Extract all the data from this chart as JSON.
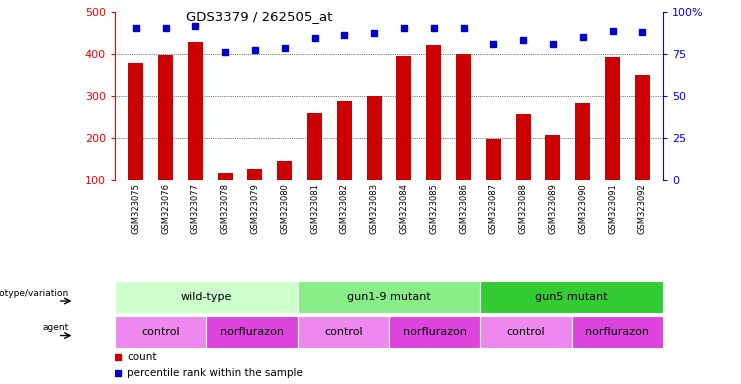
{
  "title": "GDS3379 / 262505_at",
  "samples": [
    "GSM323075",
    "GSM323076",
    "GSM323077",
    "GSM323078",
    "GSM323079",
    "GSM323080",
    "GSM323081",
    "GSM323082",
    "GSM323083",
    "GSM323084",
    "GSM323085",
    "GSM323086",
    "GSM323087",
    "GSM323088",
    "GSM323089",
    "GSM323090",
    "GSM323091",
    "GSM323092"
  ],
  "counts": [
    378,
    397,
    427,
    118,
    128,
    147,
    260,
    289,
    300,
    395,
    420,
    400,
    199,
    258,
    207,
    284,
    392,
    350
  ],
  "percentile_ranks": [
    460,
    460,
    465,
    403,
    410,
    413,
    438,
    445,
    448,
    460,
    462,
    462,
    424,
    433,
    424,
    440,
    455,
    452
  ],
  "bar_color": "#cc0000",
  "dot_color": "#0000cc",
  "ylim_left": [
    100,
    500
  ],
  "ylim_right": [
    0,
    100
  ],
  "yticks_left": [
    100,
    200,
    300,
    400,
    500
  ],
  "yticks_right": [
    0,
    25,
    50,
    75,
    100
  ],
  "ytick_labels_right": [
    "0",
    "25",
    "50",
    "75",
    "100%"
  ],
  "gridlines": [
    200,
    300,
    400
  ],
  "genotype_groups": [
    {
      "label": "wild-type",
      "start": 0,
      "end": 6,
      "color": "#ccffcc"
    },
    {
      "label": "gun1-9 mutant",
      "start": 6,
      "end": 12,
      "color": "#88ee88"
    },
    {
      "label": "gun5 mutant",
      "start": 12,
      "end": 18,
      "color": "#33cc33"
    }
  ],
  "agent_groups": [
    {
      "label": "control",
      "start": 0,
      "end": 3,
      "color": "#ee88ee"
    },
    {
      "label": "norflurazon",
      "start": 3,
      "end": 6,
      "color": "#dd44dd"
    },
    {
      "label": "control",
      "start": 6,
      "end": 9,
      "color": "#ee88ee"
    },
    {
      "label": "norflurazon",
      "start": 9,
      "end": 12,
      "color": "#dd44dd"
    },
    {
      "label": "control",
      "start": 12,
      "end": 15,
      "color": "#ee88ee"
    },
    {
      "label": "norflurazon",
      "start": 15,
      "end": 18,
      "color": "#dd44dd"
    }
  ],
  "background_color": "#ffffff",
  "xlabel_area_color": "#cccccc"
}
